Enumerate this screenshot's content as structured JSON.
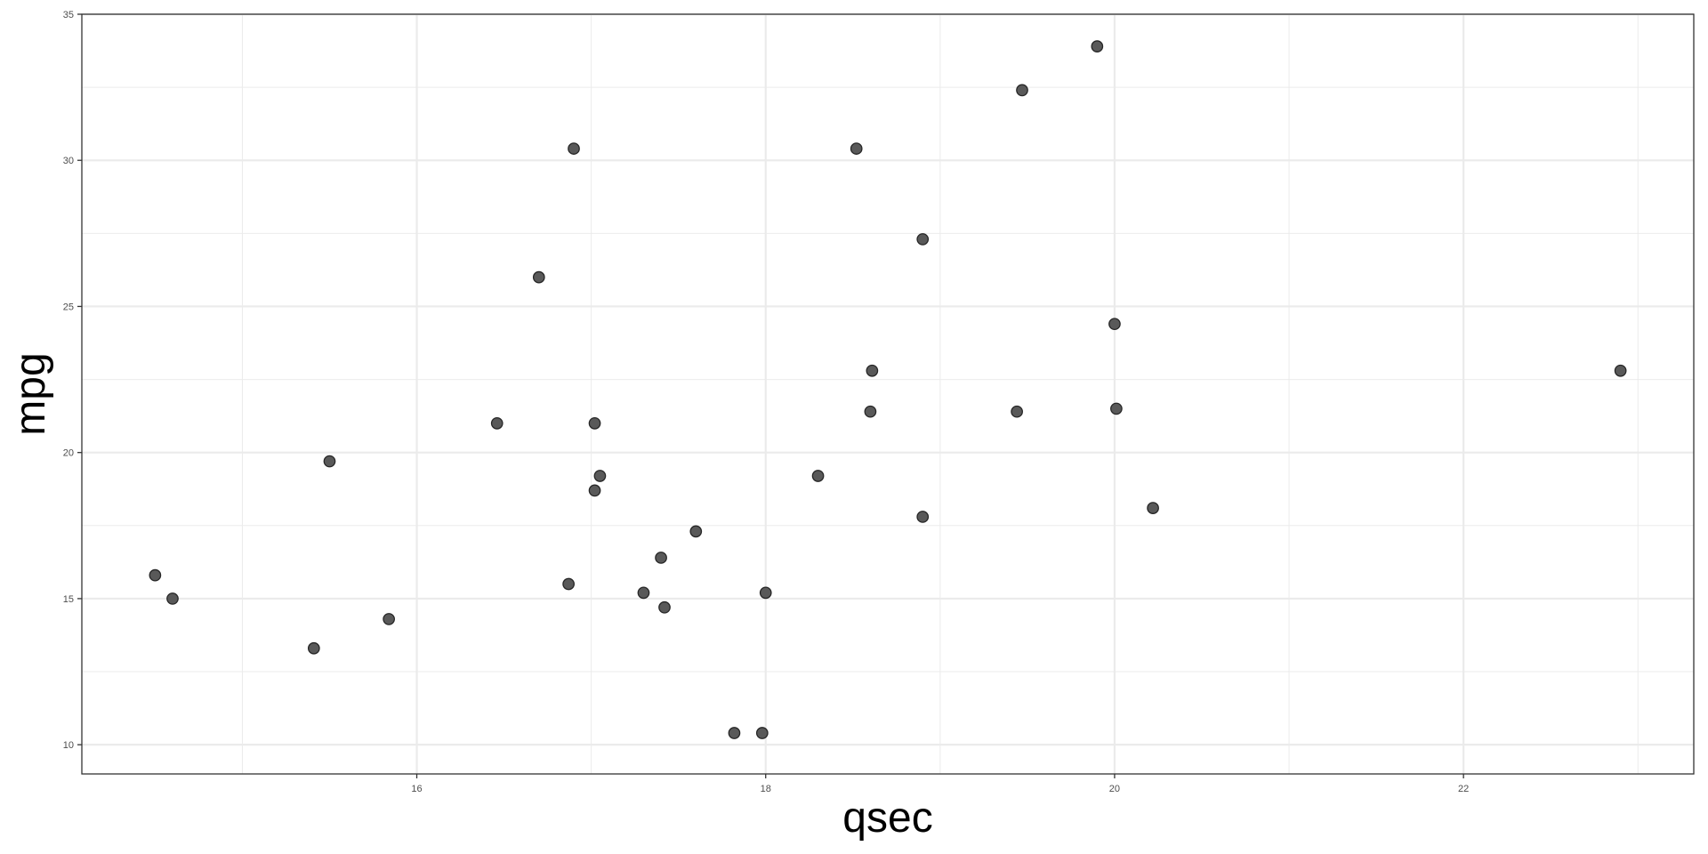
{
  "chart_data": {
    "type": "scatter",
    "title": "",
    "xlabel": "qsec",
    "ylabel": "mpg",
    "xlim": [
      14.08,
      23.32
    ],
    "ylim": [
      9.0,
      35.0
    ],
    "x_ticks": [
      16,
      18,
      20,
      22
    ],
    "y_ticks": [
      10,
      15,
      20,
      25,
      30,
      35
    ],
    "x_minor": [
      15,
      17,
      19,
      21,
      23
    ],
    "y_minor": [
      12.5,
      17.5,
      22.5,
      27.5,
      32.5
    ],
    "grid": true,
    "point_fill": "#595959",
    "point_stroke": "#262626",
    "points": [
      {
        "x": 16.46,
        "y": 21.0
      },
      {
        "x": 17.02,
        "y": 21.0
      },
      {
        "x": 18.61,
        "y": 22.8
      },
      {
        "x": 19.44,
        "y": 21.4
      },
      {
        "x": 17.02,
        "y": 18.7
      },
      {
        "x": 20.22,
        "y": 18.1
      },
      {
        "x": 15.84,
        "y": 14.3
      },
      {
        "x": 20.0,
        "y": 24.4
      },
      {
        "x": 22.9,
        "y": 22.8
      },
      {
        "x": 18.3,
        "y": 19.2
      },
      {
        "x": 18.9,
        "y": 17.8
      },
      {
        "x": 17.4,
        "y": 16.4
      },
      {
        "x": 17.6,
        "y": 17.3
      },
      {
        "x": 18.0,
        "y": 15.2
      },
      {
        "x": 17.98,
        "y": 10.4
      },
      {
        "x": 17.82,
        "y": 10.4
      },
      {
        "x": 17.42,
        "y": 14.7
      },
      {
        "x": 19.47,
        "y": 32.4
      },
      {
        "x": 18.52,
        "y": 30.4
      },
      {
        "x": 19.9,
        "y": 33.9
      },
      {
        "x": 20.01,
        "y": 21.5
      },
      {
        "x": 16.87,
        "y": 15.5
      },
      {
        "x": 17.3,
        "y": 15.2
      },
      {
        "x": 15.41,
        "y": 13.3
      },
      {
        "x": 17.05,
        "y": 19.2
      },
      {
        "x": 18.9,
        "y": 27.3
      },
      {
        "x": 16.7,
        "y": 26.0
      },
      {
        "x": 16.9,
        "y": 30.4
      },
      {
        "x": 14.5,
        "y": 15.8
      },
      {
        "x": 15.5,
        "y": 19.7
      },
      {
        "x": 14.6,
        "y": 15.0
      },
      {
        "x": 18.6,
        "y": 21.4
      }
    ]
  }
}
